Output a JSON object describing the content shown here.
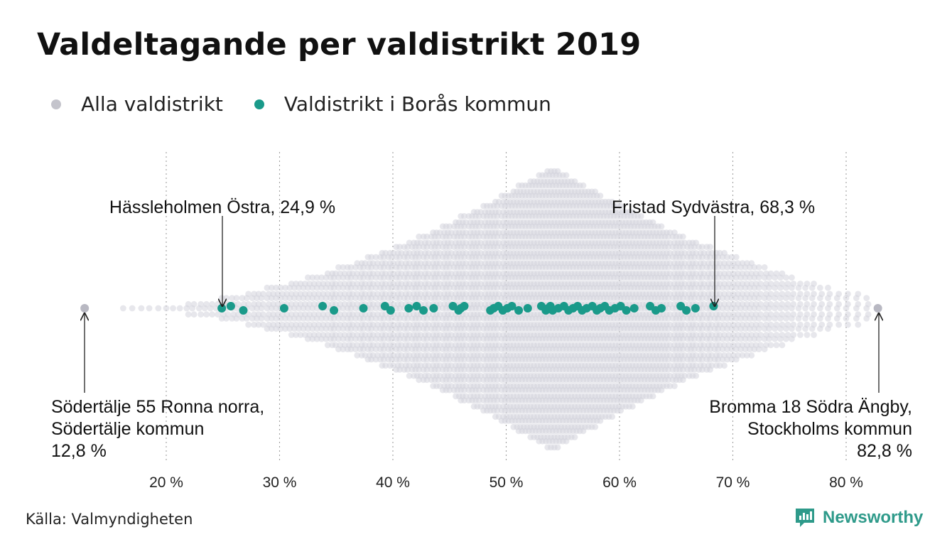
{
  "title": "Valdeltagande per valdistrikt 2019",
  "colors": {
    "all": "#d3d3dc",
    "boras": "#1a9a8a",
    "grid": "#a0a0a0",
    "brand": "#2e9a8a"
  },
  "legend": [
    {
      "label": "Alla valdistrikt",
      "color": "#c4c4cc"
    },
    {
      "label": "Valdistrikt i Borås kommun",
      "color": "#1a9a8a"
    }
  ],
  "source": "Källa: Valmyndigheten",
  "brand": {
    "name": "Newsworthy",
    "icon": "newsworthy-logo-icon"
  },
  "chart_data": {
    "type": "scatter",
    "subtype": "beeswarm",
    "xlim": [
      10,
      85
    ],
    "x_ticks": [
      {
        "value": 20,
        "label": "20 %"
      },
      {
        "value": 30,
        "label": "30 %"
      },
      {
        "value": 40,
        "label": "40 %"
      },
      {
        "value": 50,
        "label": "50 %"
      },
      {
        "value": 60,
        "label": "60 %"
      },
      {
        "value": 70,
        "label": "70 %"
      },
      {
        "value": 80,
        "label": "80 %"
      }
    ],
    "grid": "vertical dotted",
    "series": [
      {
        "name": "Alla valdistrikt",
        "color": "#d3d3dc",
        "extremes": [
          12.8,
          82.8
        ],
        "values": [
          16.2,
          17.0,
          17.8,
          18.5,
          19.3,
          20.0,
          20.6,
          21.2,
          21.8,
          22.3,
          22.9,
          23.4,
          23.9,
          24.4,
          24.9,
          25.3,
          25.8,
          26.2,
          26.7,
          27.1,
          27.6,
          28.0,
          28.4,
          28.9,
          29.3,
          29.7,
          30.1,
          30.5,
          30.9,
          31.3,
          31.7,
          32.1,
          32.5,
          32.9,
          33.3,
          33.7,
          34.1,
          34.5,
          34.8,
          35.2,
          35.6,
          36.0,
          36.3,
          36.7,
          37.1,
          37.4,
          37.8,
          38.1,
          38.5,
          38.9,
          39.2,
          39.6,
          39.9,
          40.3,
          40.6,
          41.0,
          41.3,
          41.7,
          42.0,
          42.3,
          42.7,
          43.0,
          43.4,
          43.7,
          44.0,
          44.4,
          44.7,
          45.0,
          45.4,
          45.7,
          46.0,
          46.3,
          46.7,
          47.0,
          47.3,
          47.6,
          48.0,
          48.3,
          48.6,
          48.9,
          49.2,
          49.6,
          49.9,
          50.2,
          50.5,
          50.8,
          51.1,
          51.4,
          51.7,
          52.0,
          52.3,
          52.6,
          52.9,
          53.2,
          53.5,
          53.8,
          54.1,
          54.4,
          54.7,
          55.0,
          55.3,
          55.6,
          55.9,
          56.2,
          56.5,
          56.8,
          57.1,
          57.4,
          57.7,
          58.0,
          58.3,
          58.6,
          58.9,
          59.2,
          59.5,
          59.8,
          60.1,
          60.4,
          60.7,
          61.0,
          61.3,
          61.6,
          61.9,
          62.2,
          62.5,
          62.8,
          63.1,
          63.4,
          63.7,
          64.0,
          64.3,
          64.7,
          65.0,
          65.3,
          65.6,
          66.0,
          66.3,
          66.6,
          67.0,
          67.3,
          67.7,
          68.0,
          68.4,
          68.7,
          69.1,
          69.5,
          69.9,
          70.3,
          70.7,
          71.1,
          71.5,
          71.9,
          72.3,
          72.8,
          73.2,
          73.7,
          74.2,
          74.7,
          75.2,
          75.8,
          76.4,
          77.0,
          77.7,
          78.4,
          79.2,
          80.0,
          80.9,
          81.8
        ]
      },
      {
        "name": "Valdistrikt i Borås kommun",
        "color": "#1a9a8a",
        "values": [
          24.9,
          25.7,
          26.8,
          30.4,
          33.8,
          34.8,
          37.4,
          39.3,
          39.8,
          41.4,
          42.1,
          42.7,
          43.6,
          45.3,
          45.8,
          46.0,
          46.3,
          48.6,
          48.9,
          49.3,
          49.7,
          50.1,
          50.5,
          51.1,
          51.9,
          53.1,
          53.5,
          53.7,
          53.9,
          54.1,
          54.6,
          55.1,
          55.5,
          55.9,
          56.3,
          56.7,
          57.1,
          57.6,
          58.0,
          58.3,
          58.7,
          59.1,
          59.6,
          60.1,
          60.6,
          61.3,
          62.7,
          63.2,
          63.7,
          65.4,
          65.9,
          66.7,
          68.3
        ]
      }
    ],
    "annotations": [
      {
        "lines": [
          "Hässleholmen Östra, 24,9 %"
        ],
        "x": 24.9,
        "position": "above"
      },
      {
        "lines": [
          "Fristad Sydvästra, 68,3 %"
        ],
        "x": 68.3,
        "position": "above"
      },
      {
        "lines": [
          "Södertälje 55 Ronna norra,",
          "Södertälje kommun",
          "12,8 %"
        ],
        "x": 12.8,
        "position": "below"
      },
      {
        "lines": [
          "Bromma 18 Södra Ängby,",
          "Stockholms kommun",
          "82,8 %"
        ],
        "x": 82.8,
        "position": "below"
      }
    ]
  }
}
